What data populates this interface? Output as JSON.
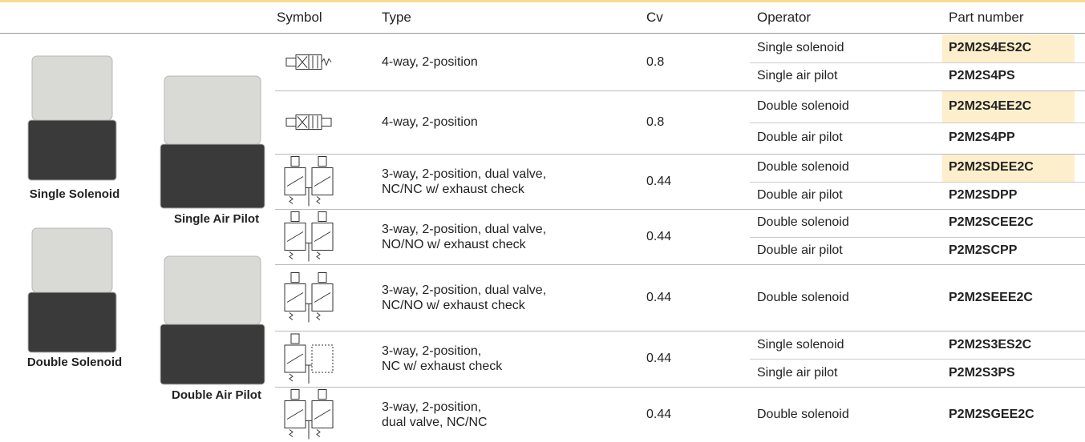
{
  "images": [
    {
      "label": "Single Solenoid"
    },
    {
      "label": "Double Solenoid"
    },
    {
      "label": "Single Air Pilot"
    },
    {
      "label": "Double Air Pilot"
    }
  ],
  "table": {
    "columns": [
      "Symbol",
      "Type",
      "Cv",
      "Operator",
      "Part number"
    ],
    "rows": [
      {
        "type": "4-way, 2-position",
        "cv": 0.8,
        "operators": [
          {
            "operator": "Single solenoid",
            "part_number": "P2M2S4ES2C",
            "highlight": true
          },
          {
            "operator": "Single air pilot",
            "part_number": "P2M2S4PS",
            "highlight": false
          }
        ]
      },
      {
        "type": "4-way, 2-position",
        "cv": 0.8,
        "operators": [
          {
            "operator": "Double solenoid",
            "part_number": "P2M2S4EE2C",
            "highlight": true
          },
          {
            "operator": "Double air pilot",
            "part_number": "P2M2S4PP",
            "highlight": false
          }
        ]
      },
      {
        "type": "3-way, 2-position, dual valve,\nNC/NC w/ exhaust check",
        "cv": 0.44,
        "operators": [
          {
            "operator": "Double solenoid",
            "part_number": "P2M2SDEE2C",
            "highlight": true
          },
          {
            "operator": "Double air pilot",
            "part_number": "P2M2SDPP",
            "highlight": false
          }
        ]
      },
      {
        "type": "3-way, 2-position, dual valve,\nNO/NO w/ exhaust check",
        "cv": 0.44,
        "operators": [
          {
            "operator": "Double solenoid",
            "part_number": "P2M2SCEE2C",
            "highlight": false
          },
          {
            "operator": "Double air pilot",
            "part_number": "P2M2SCPP",
            "highlight": false
          }
        ]
      },
      {
        "type": "3-way, 2-position, dual valve,\nNC/NO w/ exhaust check",
        "cv": 0.44,
        "operators": [
          {
            "operator": "Double solenoid",
            "part_number": "P2M2SEEE2C",
            "highlight": false
          }
        ]
      },
      {
        "type": "3-way, 2-position,\nNC w/ exhaust check",
        "cv": 0.44,
        "operators": [
          {
            "operator": "Single solenoid",
            "part_number": "P2M2S3ES2C",
            "highlight": false
          },
          {
            "operator": "Single air pilot",
            "part_number": "P2M2S3PS",
            "highlight": false
          }
        ]
      },
      {
        "type": "3-way, 2-position,\ndual valve, NC/NC",
        "cv": 0.44,
        "operators": [
          {
            "operator": "Double solenoid",
            "part_number": "P2M2SGEE2C",
            "highlight": false
          }
        ]
      }
    ]
  }
}
